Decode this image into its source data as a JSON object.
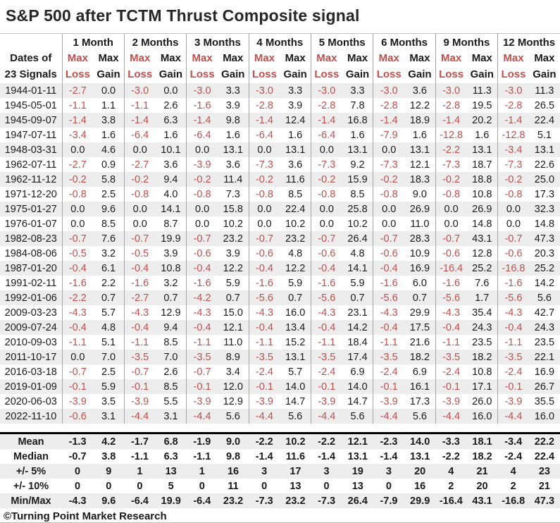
{
  "title": "S&P 500 after TCTM Thrust Composite signal",
  "footer": "©Turning Point Market Research",
  "colors": {
    "data_loss_red": "#C0504D",
    "summary_red": "#C00000",
    "text_black": "#1A1A1A",
    "stripe_gray": "#EDEDED",
    "grid_line_gray": "#A6A6A6",
    "rule_gray": "#BFBFBF",
    "divider_black": "#000000"
  },
  "chart_data": {
    "type": "table",
    "title": "S&P 500 after TCTM Thrust Composite signal",
    "row_header_lines": [
      "Dates of",
      "23 Signals"
    ],
    "periods": [
      "1 Month",
      "2 Months",
      "3 Months",
      "4 Months",
      "5 Months",
      "6 Months",
      "9 Months",
      "12 Months"
    ],
    "loss_header": [
      "Max",
      "Loss"
    ],
    "gain_header": [
      "Max",
      "Gain"
    ],
    "rows": [
      {
        "date": "1944-01-11",
        "values": [
          "-2.7",
          "0.0",
          "-3.0",
          "0.0",
          "-3.0",
          "3.3",
          "-3.0",
          "3.3",
          "-3.0",
          "3.3",
          "-3.0",
          "3.6",
          "-3.0",
          "11.3",
          "-3.0",
          "11.3"
        ]
      },
      {
        "date": "1945-05-01",
        "values": [
          "-1.1",
          "1.1",
          "-1.1",
          "2.6",
          "-1.6",
          "3.9",
          "-2.8",
          "3.9",
          "-2.8",
          "7.8",
          "-2.8",
          "12.2",
          "-2.8",
          "19.5",
          "-2.8",
          "26.5"
        ]
      },
      {
        "date": "1945-09-07",
        "values": [
          "-1.4",
          "3.8",
          "-1.4",
          "6.3",
          "-1.4",
          "9.8",
          "-1.4",
          "12.4",
          "-1.4",
          "16.8",
          "-1.4",
          "18.9",
          "-1.4",
          "20.2",
          "-1.4",
          "22.4"
        ]
      },
      {
        "date": "1947-07-11",
        "values": [
          "-3.4",
          "1.6",
          "-6.4",
          "1.6",
          "-6.4",
          "1.6",
          "-6.4",
          "1.6",
          "-6.4",
          "1.6",
          "-7.9",
          "1.6",
          "-12.8",
          "1.6",
          "-12.8",
          "5.1"
        ]
      },
      {
        "date": "1948-03-31",
        "values": [
          "0.0",
          "4.6",
          "0.0",
          "10.1",
          "0.0",
          "13.1",
          "0.0",
          "13.1",
          "0.0",
          "13.1",
          "0.0",
          "13.1",
          "-2.2",
          "13.1",
          "-3.4",
          "13.1"
        ]
      },
      {
        "date": "1962-07-11",
        "values": [
          "-2.7",
          "0.9",
          "-2.7",
          "3.6",
          "-3.9",
          "3.6",
          "-7.3",
          "3.6",
          "-7.3",
          "9.2",
          "-7.3",
          "12.1",
          "-7.3",
          "18.7",
          "-7.3",
          "22.6"
        ]
      },
      {
        "date": "1962-11-12",
        "values": [
          "-0.2",
          "5.8",
          "-0.2",
          "9.4",
          "-0.2",
          "11.4",
          "-0.2",
          "11.6",
          "-0.2",
          "15.9",
          "-0.2",
          "18.3",
          "-0.2",
          "18.8",
          "-0.2",
          "25.0"
        ]
      },
      {
        "date": "1971-12-20",
        "values": [
          "-0.8",
          "2.5",
          "-0.8",
          "4.0",
          "-0.8",
          "7.3",
          "-0.8",
          "8.5",
          "-0.8",
          "8.5",
          "-0.8",
          "9.0",
          "-0.8",
          "10.8",
          "-0.8",
          "17.3"
        ]
      },
      {
        "date": "1975-01-27",
        "values": [
          "0.0",
          "9.6",
          "0.0",
          "14.1",
          "0.0",
          "15.8",
          "0.0",
          "22.4",
          "0.0",
          "25.8",
          "0.0",
          "26.9",
          "0.0",
          "26.9",
          "0.0",
          "32.3"
        ]
      },
      {
        "date": "1976-01-07",
        "values": [
          "0.0",
          "8.5",
          "0.0",
          "8.7",
          "0.0",
          "10.2",
          "0.0",
          "10.2",
          "0.0",
          "10.2",
          "0.0",
          "11.0",
          "0.0",
          "14.8",
          "0.0",
          "14.8"
        ]
      },
      {
        "date": "1982-08-23",
        "values": [
          "-0.7",
          "7.6",
          "-0.7",
          "19.9",
          "-0.7",
          "23.2",
          "-0.7",
          "23.2",
          "-0.7",
          "26.4",
          "-0.7",
          "28.3",
          "-0.7",
          "43.1",
          "-0.7",
          "47.3"
        ]
      },
      {
        "date": "1984-08-06",
        "values": [
          "-0.5",
          "3.2",
          "-0.5",
          "3.9",
          "-0.6",
          "3.9",
          "-0.6",
          "4.8",
          "-0.6",
          "4.8",
          "-0.6",
          "10.9",
          "-0.6",
          "12.8",
          "-0.6",
          "20.3"
        ]
      },
      {
        "date": "1987-01-20",
        "values": [
          "-0.4",
          "6.1",
          "-0.4",
          "10.8",
          "-0.4",
          "12.2",
          "-0.4",
          "12.2",
          "-0.4",
          "14.1",
          "-0.4",
          "16.9",
          "-16.4",
          "25.2",
          "-16.8",
          "25.2"
        ]
      },
      {
        "date": "1991-02-11",
        "values": [
          "-1.6",
          "2.2",
          "-1.6",
          "3.2",
          "-1.6",
          "5.9",
          "-1.6",
          "5.9",
          "-1.6",
          "5.9",
          "-1.6",
          "6.0",
          "-1.6",
          "7.6",
          "-1.6",
          "14.2"
        ]
      },
      {
        "date": "1992-01-06",
        "values": [
          "-2.2",
          "0.7",
          "-2.7",
          "0.7",
          "-4.2",
          "0.7",
          "-5.6",
          "0.7",
          "-5.6",
          "0.7",
          "-5.6",
          "0.7",
          "-5.6",
          "1.7",
          "-5.6",
          "5.6"
        ]
      },
      {
        "date": "2009-03-23",
        "values": [
          "-4.3",
          "5.7",
          "-4.3",
          "12.9",
          "-4.3",
          "15.0",
          "-4.3",
          "16.0",
          "-4.3",
          "23.1",
          "-4.3",
          "29.9",
          "-4.3",
          "35.4",
          "-4.3",
          "42.7"
        ]
      },
      {
        "date": "2009-07-24",
        "values": [
          "-0.4",
          "4.8",
          "-0.4",
          "9.4",
          "-0.4",
          "12.1",
          "-0.4",
          "13.4",
          "-0.4",
          "14.2",
          "-0.4",
          "17.5",
          "-0.4",
          "24.3",
          "-0.4",
          "24.3"
        ]
      },
      {
        "date": "2010-09-03",
        "values": [
          "-1.1",
          "5.1",
          "-1.1",
          "8.5",
          "-1.1",
          "11.0",
          "-1.1",
          "15.2",
          "-1.1",
          "18.4",
          "-1.1",
          "21.6",
          "-1.1",
          "23.5",
          "-1.1",
          "23.5"
        ]
      },
      {
        "date": "2011-10-17",
        "values": [
          "0.0",
          "7.0",
          "-3.5",
          "7.0",
          "-3.5",
          "8.9",
          "-3.5",
          "13.1",
          "-3.5",
          "17.4",
          "-3.5",
          "18.2",
          "-3.5",
          "18.2",
          "-3.5",
          "22.1"
        ]
      },
      {
        "date": "2016-03-18",
        "values": [
          "-0.7",
          "2.5",
          "-0.7",
          "2.6",
          "-0.7",
          "3.4",
          "-2.4",
          "5.7",
          "-2.4",
          "6.9",
          "-2.4",
          "6.9",
          "-2.4",
          "10.8",
          "-2.4",
          "16.9"
        ]
      },
      {
        "date": "2019-01-09",
        "values": [
          "-0.1",
          "5.9",
          "-0.1",
          "8.5",
          "-0.1",
          "12.0",
          "-0.1",
          "14.0",
          "-0.1",
          "14.0",
          "-0.1",
          "16.1",
          "-0.1",
          "17.1",
          "-0.1",
          "26.7"
        ]
      },
      {
        "date": "2020-06-03",
        "values": [
          "-3.9",
          "3.5",
          "-3.9",
          "5.5",
          "-3.9",
          "12.9",
          "-3.9",
          "14.7",
          "-3.9",
          "14.7",
          "-3.9",
          "17.3",
          "-3.9",
          "26.0",
          "-3.9",
          "35.5"
        ]
      },
      {
        "date": "2022-11-10",
        "values": [
          "-0.6",
          "3.1",
          "-4.4",
          "3.1",
          "-4.4",
          "5.6",
          "-4.4",
          "5.6",
          "-4.4",
          "5.6",
          "-4.4",
          "5.6",
          "-4.4",
          "16.0",
          "-4.4",
          "16.0"
        ]
      }
    ],
    "summary_rows": [
      {
        "label": "Mean",
        "values": [
          "-1.3",
          "4.2",
          "-1.7",
          "6.8",
          "-1.9",
          "9.0",
          "-2.2",
          "10.2",
          "-2.2",
          "12.1",
          "-2.3",
          "14.0",
          "-3.3",
          "18.1",
          "-3.4",
          "22.2"
        ]
      },
      {
        "label": "Median",
        "values": [
          "-0.7",
          "3.8",
          "-1.1",
          "6.3",
          "-1.1",
          "9.8",
          "-1.4",
          "11.6",
          "-1.4",
          "13.1",
          "-1.4",
          "13.1",
          "-2.2",
          "18.2",
          "-2.4",
          "22.4"
        ]
      },
      {
        "label": "+/- 5%",
        "values": [
          "0",
          "9",
          "1",
          "13",
          "1",
          "16",
          "3",
          "17",
          "3",
          "19",
          "3",
          "20",
          "4",
          "21",
          "4",
          "23"
        ]
      },
      {
        "label": "+/- 10%",
        "values": [
          "0",
          "0",
          "0",
          "5",
          "0",
          "11",
          "0",
          "13",
          "0",
          "13",
          "0",
          "16",
          "2",
          "20",
          "2",
          "21"
        ]
      },
      {
        "label": "Min/Max",
        "values": [
          "-4.3",
          "9.6",
          "-6.4",
          "19.9",
          "-6.4",
          "23.2",
          "-7.3",
          "23.2",
          "-7.3",
          "26.4",
          "-7.9",
          "29.9",
          "-16.4",
          "43.1",
          "-16.8",
          "47.3"
        ]
      }
    ]
  }
}
